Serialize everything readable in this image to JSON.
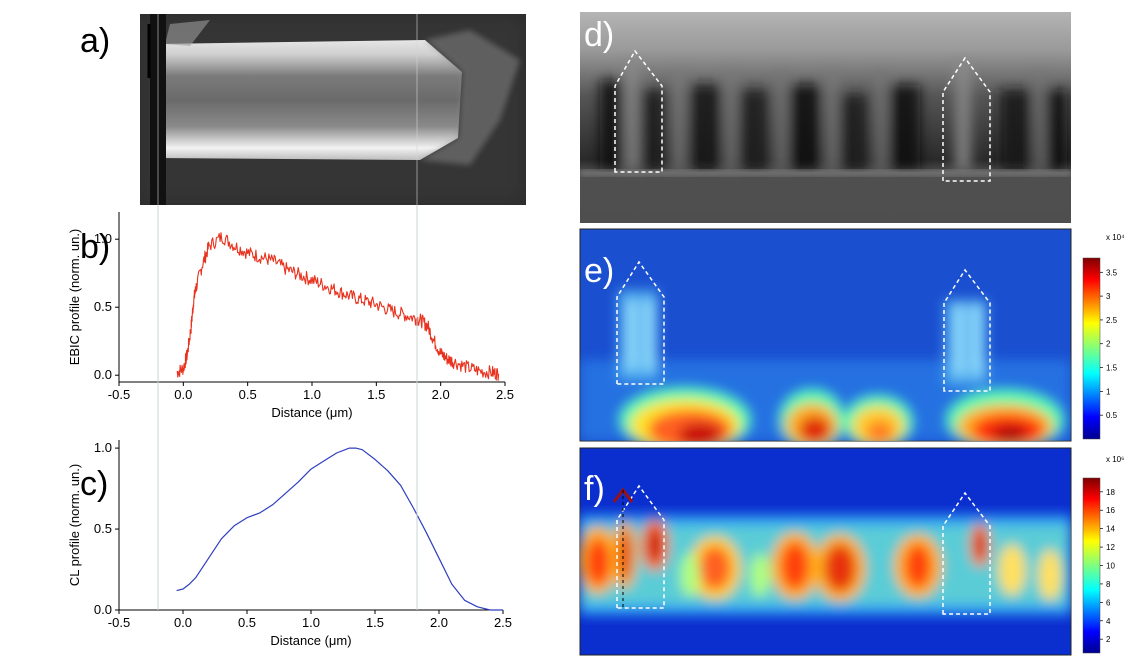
{
  "panels": {
    "a": "a)",
    "b": "b)",
    "c": "c)",
    "d": "d)",
    "e": "e)",
    "f": "f)"
  },
  "chart_data": [
    {
      "type": "line",
      "panel": "b",
      "xlabel": "Distance (μm)",
      "ylabel": "EBIC profile (norm. un.)",
      "xlim": [
        -0.5,
        2.5
      ],
      "ylim": [
        -0.05,
        1.2
      ],
      "xticks": [
        "-0.5",
        "0.0",
        "0.5",
        "1.0",
        "1.5",
        "2.0",
        "2.5"
      ],
      "yticks": [
        "0.0",
        "0.5",
        "1.0"
      ],
      "color": "#e8321e",
      "x": [
        -0.05,
        0.0,
        0.03,
        0.06,
        0.08,
        0.1,
        0.15,
        0.2,
        0.3,
        0.4,
        0.5,
        0.6,
        0.7,
        0.8,
        0.9,
        1.0,
        1.1,
        1.2,
        1.3,
        1.4,
        1.5,
        1.6,
        1.7,
        1.8,
        1.85,
        1.9,
        1.95,
        2.0,
        2.05,
        2.1,
        2.2,
        2.3,
        2.4,
        2.45
      ],
      "y": [
        0.02,
        0.05,
        0.15,
        0.35,
        0.55,
        0.65,
        0.82,
        0.95,
        1.02,
        0.95,
        0.9,
        0.87,
        0.84,
        0.78,
        0.74,
        0.7,
        0.66,
        0.62,
        0.58,
        0.55,
        0.52,
        0.48,
        0.45,
        0.42,
        0.4,
        0.36,
        0.25,
        0.16,
        0.12,
        0.1,
        0.06,
        0.03,
        0.02,
        0.01
      ]
    },
    {
      "type": "line",
      "panel": "c",
      "xlabel": "Distance (μm)",
      "ylabel": "CL profile (norm. un.)",
      "xlim": [
        -0.5,
        2.5
      ],
      "ylim": [
        0.0,
        1.05
      ],
      "xticks": [
        "-0.5",
        "0.0",
        "0.5",
        "1.0",
        "1.5",
        "2.0",
        "2.5"
      ],
      "yticks": [
        "0.0",
        "0.5",
        "1.0"
      ],
      "color": "#2f3fbf",
      "x": [
        -0.05,
        0.0,
        0.05,
        0.1,
        0.2,
        0.3,
        0.4,
        0.5,
        0.6,
        0.7,
        0.8,
        0.9,
        1.0,
        1.1,
        1.2,
        1.3,
        1.35,
        1.4,
        1.5,
        1.6,
        1.7,
        1.8,
        1.9,
        2.0,
        2.1,
        2.2,
        2.3,
        2.4,
        2.5
      ],
      "y": [
        0.12,
        0.13,
        0.16,
        0.2,
        0.32,
        0.44,
        0.52,
        0.57,
        0.6,
        0.65,
        0.72,
        0.79,
        0.87,
        0.92,
        0.97,
        1.0,
        1.0,
        0.99,
        0.93,
        0.86,
        0.77,
        0.63,
        0.48,
        0.32,
        0.16,
        0.06,
        0.02,
        0.0,
        0.0
      ]
    }
  ],
  "colorbar_e": {
    "exponent": "x 10⁴",
    "ticks": [
      "3.5",
      "3",
      "2.5",
      "2",
      "1.5",
      "1",
      "0.5"
    ]
  },
  "colorbar_f": {
    "exponent": "x 10⁶",
    "ticks": [
      "18",
      "16",
      "14",
      "12",
      "10",
      "8",
      "6",
      "4",
      "2"
    ]
  }
}
